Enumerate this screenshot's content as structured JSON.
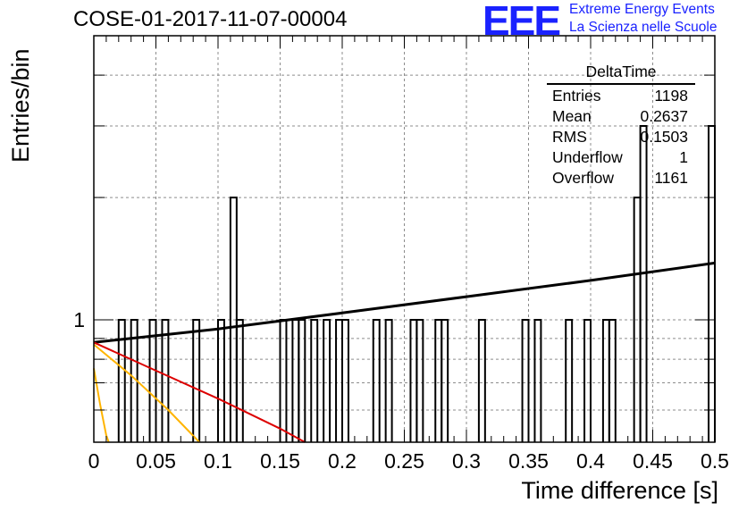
{
  "title": "COSE-01-2017-11-07-00004",
  "logo": {
    "mark": "EEE",
    "line1": "Extreme Energy Events",
    "line2": "La Scienza nelle Scuole",
    "color": "#1a22ff"
  },
  "stats": {
    "title": "DeltaTime",
    "rows": [
      {
        "label": "Entries",
        "value": "1198"
      },
      {
        "label": "Mean",
        "value": "0.2637"
      },
      {
        "label": "RMS",
        "value": "0.1503"
      },
      {
        "label": "Underflow",
        "value": "1"
      },
      {
        "label": "Overflow",
        "value": "1161"
      }
    ]
  },
  "chart_data": {
    "type": "bar",
    "title": "COSE-01-2017-11-07-00004",
    "xlabel": "Time difference [s]",
    "ylabel": "Entries/bin",
    "xlim": [
      0,
      0.5
    ],
    "ylim": [
      0.5,
      5
    ],
    "log_y": true,
    "grid": true,
    "x_ticks": [
      "0",
      "0.05",
      "0.1",
      "0.15",
      "0.2",
      "0.25",
      "0.3",
      "0.35",
      "0.4",
      "0.45",
      "0.5"
    ],
    "y_ticks": [
      "1"
    ],
    "bin_width": 0.005,
    "bins": [
      {
        "x": 0.02,
        "y": 1
      },
      {
        "x": 0.03,
        "y": 1
      },
      {
        "x": 0.045,
        "y": 1
      },
      {
        "x": 0.055,
        "y": 1
      },
      {
        "x": 0.08,
        "y": 1
      },
      {
        "x": 0.1,
        "y": 1
      },
      {
        "x": 0.11,
        "y": 2
      },
      {
        "x": 0.115,
        "y": 1
      },
      {
        "x": 0.15,
        "y": 1
      },
      {
        "x": 0.16,
        "y": 1
      },
      {
        "x": 0.165,
        "y": 1
      },
      {
        "x": 0.175,
        "y": 1
      },
      {
        "x": 0.185,
        "y": 1
      },
      {
        "x": 0.195,
        "y": 1
      },
      {
        "x": 0.2,
        "y": 1
      },
      {
        "x": 0.225,
        "y": 1
      },
      {
        "x": 0.235,
        "y": 1
      },
      {
        "x": 0.255,
        "y": 1
      },
      {
        "x": 0.26,
        "y": 1
      },
      {
        "x": 0.275,
        "y": 1
      },
      {
        "x": 0.28,
        "y": 1
      },
      {
        "x": 0.31,
        "y": 1
      },
      {
        "x": 0.345,
        "y": 1
      },
      {
        "x": 0.355,
        "y": 1
      },
      {
        "x": 0.38,
        "y": 1
      },
      {
        "x": 0.395,
        "y": 1
      },
      {
        "x": 0.41,
        "y": 1
      },
      {
        "x": 0.415,
        "y": 1
      },
      {
        "x": 0.435,
        "y": 2
      },
      {
        "x": 0.44,
        "y": 3
      },
      {
        "x": 0.495,
        "y": 3
      }
    ],
    "fits": [
      {
        "color": "#000000",
        "points": [
          [
            0,
            0.88
          ],
          [
            0.1,
            0.95
          ],
          [
            0.2,
            1.04
          ],
          [
            0.3,
            1.14
          ],
          [
            0.4,
            1.25
          ],
          [
            0.5,
            1.38
          ]
        ]
      },
      {
        "color": "#dd0000",
        "points": [
          [
            0,
            0.88
          ],
          [
            0.05,
            0.75
          ],
          [
            0.1,
            0.64
          ],
          [
            0.15,
            0.54
          ],
          [
            0.17,
            0.5
          ]
        ]
      },
      {
        "color": "#ffb400",
        "points": [
          [
            0,
            0.87
          ],
          [
            0.03,
            0.73
          ],
          [
            0.06,
            0.6
          ],
          [
            0.085,
            0.5
          ]
        ]
      },
      {
        "color": "#ffb400",
        "points": [
          [
            0,
            0.76
          ],
          [
            0.005,
            0.62
          ],
          [
            0.01,
            0.52
          ],
          [
            0.012,
            0.5
          ]
        ]
      }
    ]
  }
}
